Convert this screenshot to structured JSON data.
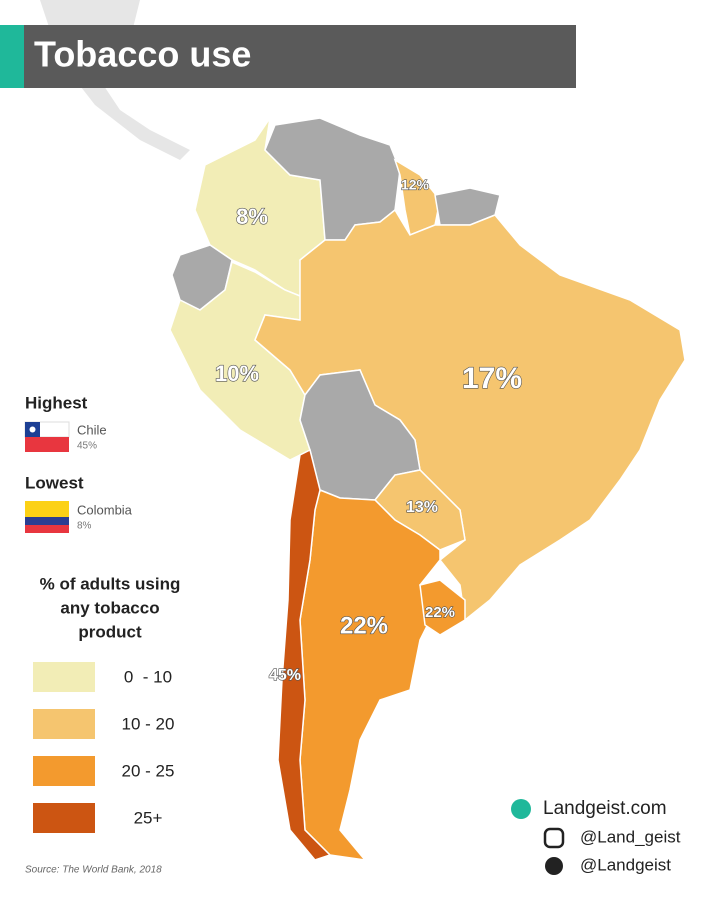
{
  "header": {
    "title": "Tobacco use"
  },
  "map": {
    "labels": [
      "8%",
      "12%",
      "10%",
      "17%",
      "13%",
      "22%",
      "22%",
      "45%"
    ]
  },
  "legend": {
    "highest": {
      "heading": "Highest",
      "country": "Chile",
      "value": "45%"
    },
    "lowest": {
      "heading": "Lowest",
      "country": "Colombia",
      "value": "8%"
    },
    "title_lines": [
      "% of adults using",
      "any tobacco",
      "product"
    ],
    "items": [
      "0  - 10",
      "10 - 20",
      "20 - 25",
      "25+"
    ]
  },
  "source": "Source: The World Bank, 2018",
  "social": {
    "website": "Landgeist.com",
    "instagram": "@Land_geist",
    "twitter": "@Landgeist"
  }
}
